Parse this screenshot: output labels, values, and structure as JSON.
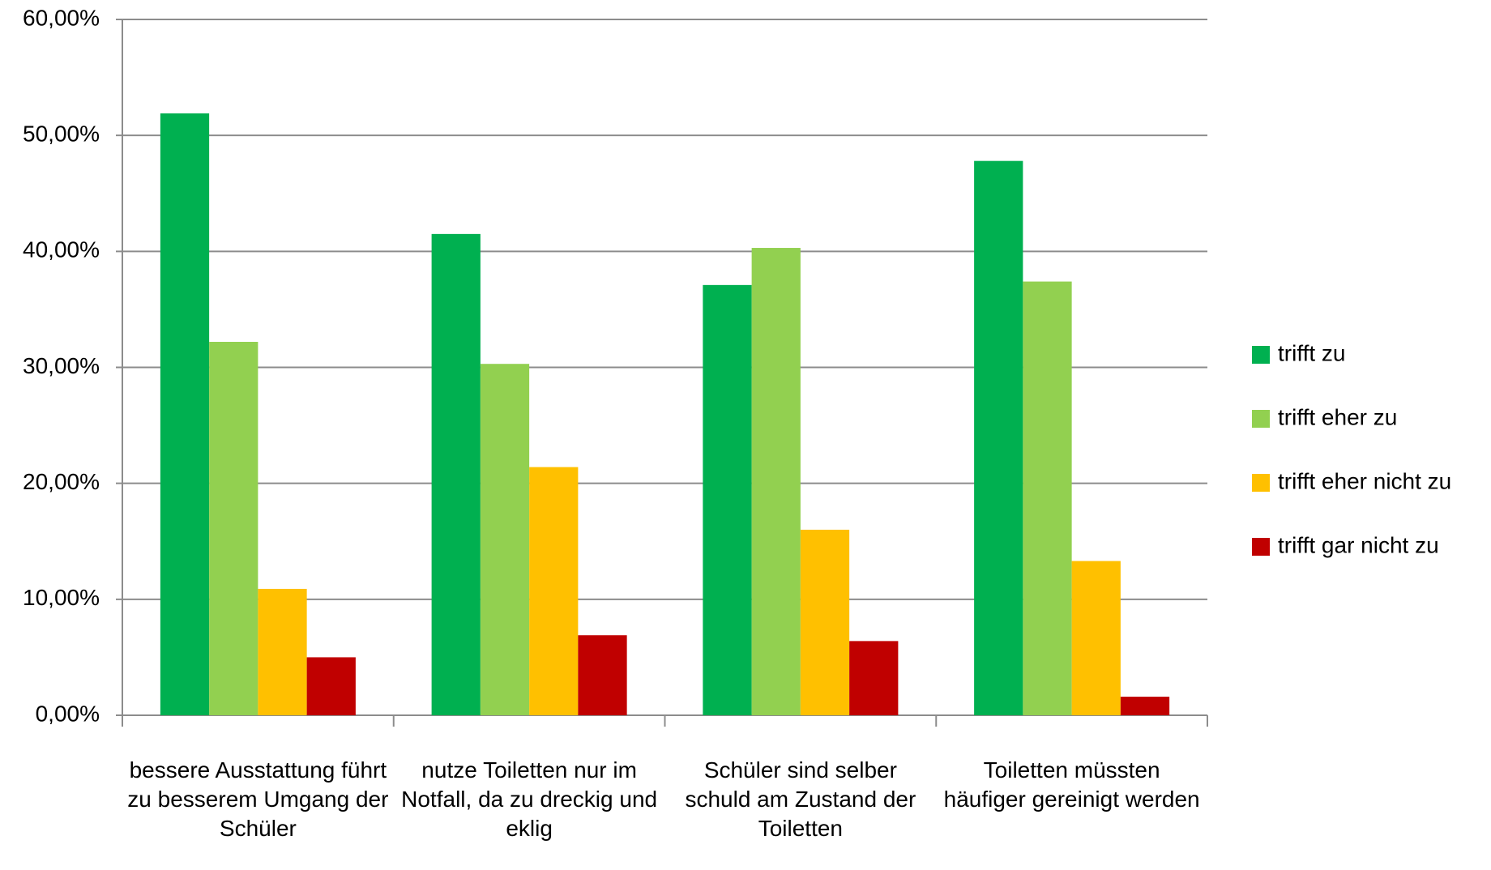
{
  "chart_data": {
    "type": "bar",
    "categories": [
      "bessere Ausstattung führt zu besserem Umgang der Schüler",
      "nutze Toiletten nur im Notfall, da zu dreckig und eklig",
      "Schüler sind selber schuld am Zustand der Toiletten",
      "Toiletten müssten häufiger gereinigt werden"
    ],
    "series": [
      {
        "name": "trifft zu",
        "color": "#00b050",
        "values": [
          51.9,
          41.5,
          37.1,
          47.8
        ]
      },
      {
        "name": "trifft eher zu",
        "color": "#92d050",
        "values": [
          32.2,
          30.3,
          40.3,
          37.4
        ]
      },
      {
        "name": "trifft eher nicht zu",
        "color": "#ffc000",
        "values": [
          10.9,
          21.4,
          16.0,
          13.3
        ]
      },
      {
        "name": "trifft gar nicht zu",
        "color": "#c00000",
        "values": [
          5.0,
          6.9,
          6.4,
          1.6
        ]
      }
    ],
    "ylim": [
      0,
      60
    ],
    "yticks": [
      {
        "value": 0,
        "label": "0,00%"
      },
      {
        "value": 10,
        "label": "10,00%"
      },
      {
        "value": 20,
        "label": "20,00%"
      },
      {
        "value": 30,
        "label": "30,00%"
      },
      {
        "value": 40,
        "label": "40,00%"
      },
      {
        "value": 50,
        "label": "50,00%"
      },
      {
        "value": 60,
        "label": "60,00%"
      }
    ],
    "grid": true,
    "legend": "right"
  }
}
